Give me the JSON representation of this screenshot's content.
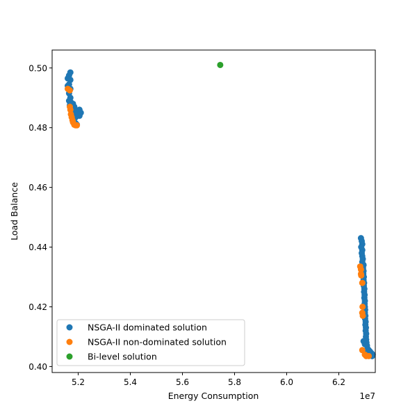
{
  "chart_data": {
    "type": "scatter",
    "xlabel": "Energy Consumption",
    "ylabel": "Load Balance",
    "x_offset_label": "1e7",
    "xlim": [
      51000000,
      63400000
    ],
    "ylim": [
      0.398,
      0.506
    ],
    "x_ticks": [
      52000000,
      54000000,
      56000000,
      58000000,
      60000000,
      62000000
    ],
    "x_tick_labels": [
      "5.2",
      "5.4",
      "5.6",
      "5.8",
      "6.0",
      "6.2"
    ],
    "y_ticks": [
      0.4,
      0.42,
      0.44,
      0.46,
      0.48,
      0.5
    ],
    "y_tick_labels": [
      "0.40",
      "0.42",
      "0.44",
      "0.46",
      "0.48",
      "0.50"
    ],
    "grid": false,
    "legend_position": "lower-left",
    "series": [
      {
        "name": "NSGA-II dominated solution",
        "color": "#1f77b4",
        "points": [
          [
            51600000,
            0.4965
          ],
          [
            51650000,
            0.4975
          ],
          [
            51700000,
            0.4985
          ],
          [
            51700000,
            0.496
          ],
          [
            51650000,
            0.4945
          ],
          [
            51700000,
            0.493
          ],
          [
            51650000,
            0.4915
          ],
          [
            51700000,
            0.49
          ],
          [
            51720000,
            0.4885
          ],
          [
            51680000,
            0.4875
          ],
          [
            51750000,
            0.487
          ],
          [
            51800000,
            0.488
          ],
          [
            51850000,
            0.487
          ],
          [
            51900000,
            0.486
          ],
          [
            51950000,
            0.4855
          ],
          [
            52000000,
            0.485
          ],
          [
            52050000,
            0.486
          ],
          [
            52100000,
            0.485
          ],
          [
            52050000,
            0.484
          ],
          [
            51950000,
            0.4845
          ],
          [
            51900000,
            0.4835
          ],
          [
            51850000,
            0.483
          ],
          [
            51800000,
            0.4825
          ],
          [
            51900000,
            0.4815
          ],
          [
            51950000,
            0.481
          ],
          [
            51750000,
            0.4845
          ],
          [
            51650000,
            0.489
          ],
          [
            51600000,
            0.494
          ],
          [
            62850000,
            0.443
          ],
          [
            62880000,
            0.442
          ],
          [
            62900000,
            0.441
          ],
          [
            62860000,
            0.44
          ],
          [
            62900000,
            0.439
          ],
          [
            62880000,
            0.438
          ],
          [
            62900000,
            0.437
          ],
          [
            62920000,
            0.436
          ],
          [
            62900000,
            0.435
          ],
          [
            62950000,
            0.434
          ],
          [
            62930000,
            0.433
          ],
          [
            62950000,
            0.432
          ],
          [
            62940000,
            0.431
          ],
          [
            62960000,
            0.43
          ],
          [
            62950000,
            0.429
          ],
          [
            62970000,
            0.428
          ],
          [
            62960000,
            0.427
          ],
          [
            62980000,
            0.426
          ],
          [
            62970000,
            0.425
          ],
          [
            62990000,
            0.424
          ],
          [
            62980000,
            0.423
          ],
          [
            63000000,
            0.422
          ],
          [
            62990000,
            0.421
          ],
          [
            63000000,
            0.42
          ],
          [
            63010000,
            0.419
          ],
          [
            63000000,
            0.418
          ],
          [
            63020000,
            0.417
          ],
          [
            63010000,
            0.416
          ],
          [
            63030000,
            0.415
          ],
          [
            63020000,
            0.414
          ],
          [
            63040000,
            0.413
          ],
          [
            63030000,
            0.412
          ],
          [
            63050000,
            0.411
          ],
          [
            63040000,
            0.41
          ],
          [
            63050000,
            0.409
          ],
          [
            63060000,
            0.408
          ],
          [
            63080000,
            0.407
          ],
          [
            63100000,
            0.406
          ],
          [
            63150000,
            0.4055
          ],
          [
            63200000,
            0.405
          ],
          [
            63250000,
            0.4045
          ],
          [
            63300000,
            0.404
          ],
          [
            63280000,
            0.4035
          ],
          [
            63000000,
            0.4075
          ],
          [
            62950000,
            0.4085
          ],
          [
            63100000,
            0.4045
          ]
        ]
      },
      {
        "name": "NSGA-II non-dominated solution",
        "color": "#ff7f0e",
        "points": [
          [
            51600000,
            0.493
          ],
          [
            51680000,
            0.4925
          ],
          [
            51680000,
            0.487
          ],
          [
            51700000,
            0.486
          ],
          [
            51720000,
            0.4845
          ],
          [
            51750000,
            0.4835
          ],
          [
            51780000,
            0.4825
          ],
          [
            51800000,
            0.4818
          ],
          [
            51850000,
            0.481
          ],
          [
            51900000,
            0.4808
          ],
          [
            51950000,
            0.4808
          ],
          [
            62820000,
            0.4335
          ],
          [
            62850000,
            0.4325
          ],
          [
            62850000,
            0.431
          ],
          [
            62860000,
            0.4305
          ],
          [
            62900000,
            0.428
          ],
          [
            62910000,
            0.42
          ],
          [
            62900000,
            0.418
          ],
          [
            62920000,
            0.417
          ],
          [
            62900000,
            0.4055
          ],
          [
            63000000,
            0.404
          ],
          [
            63050000,
            0.4035
          ],
          [
            63150000,
            0.4035
          ]
        ]
      },
      {
        "name": "Bi-level solution",
        "color": "#2ca02c",
        "points": [
          [
            57450000,
            0.501
          ]
        ]
      }
    ]
  }
}
